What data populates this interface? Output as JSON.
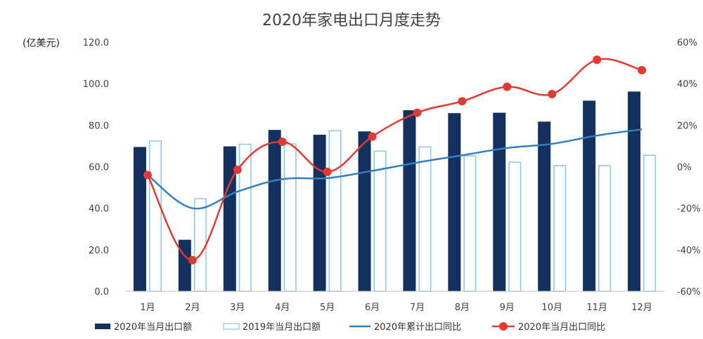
{
  "chart_data": {
    "type": "bar",
    "title": "2020年家电出口月度走势",
    "y_left_unit": "(亿美元)",
    "categories": [
      "1月",
      "2月",
      "3月",
      "4月",
      "5月",
      "6月",
      "7月",
      "8月",
      "9月",
      "10月",
      "11月",
      "12月"
    ],
    "y_left": {
      "min": 0,
      "max": 120,
      "ticks": [
        "0.0",
        "20.0",
        "40.0",
        "60.0",
        "80.0",
        "100.0",
        "120.0"
      ]
    },
    "y_right": {
      "min": -60,
      "max": 60,
      "ticks": [
        "-60%",
        "-40%",
        "-20%",
        "0%",
        "20%",
        "40%",
        "60%"
      ]
    },
    "grid": false,
    "legend_position": "bottom",
    "series": [
      {
        "name": "2020年当月出口额",
        "kind": "bar",
        "axis": "left",
        "color": "#14305e",
        "values": [
          69.5,
          24.8,
          69.8,
          77.7,
          75.4,
          77.0,
          87.2,
          85.8,
          86.0,
          81.7,
          91.8,
          96.2
        ]
      },
      {
        "name": "2019年当月出口额",
        "kind": "bar-outline",
        "axis": "left",
        "color": "#8fc3e6",
        "values": [
          72.4,
          44.6,
          70.8,
          71.0,
          77.3,
          67.5,
          69.5,
          65.2,
          62.2,
          60.5,
          60.5,
          65.5
        ]
      },
      {
        "name": "2020年累计出口同比",
        "kind": "line",
        "axis": "right",
        "color": "#2f7fc1",
        "values": [
          -4,
          -20,
          -12,
          -6,
          -5.5,
          -2,
          2,
          5.5,
          9,
          11,
          15,
          18
        ]
      },
      {
        "name": "2020年当月出口同比",
        "kind": "line-marker",
        "axis": "right",
        "color": "#e03a32",
        "values": [
          -4,
          -45,
          -1.5,
          12,
          -2.5,
          14.5,
          26,
          31.5,
          38.5,
          35,
          51.5,
          46.5
        ]
      }
    ]
  }
}
